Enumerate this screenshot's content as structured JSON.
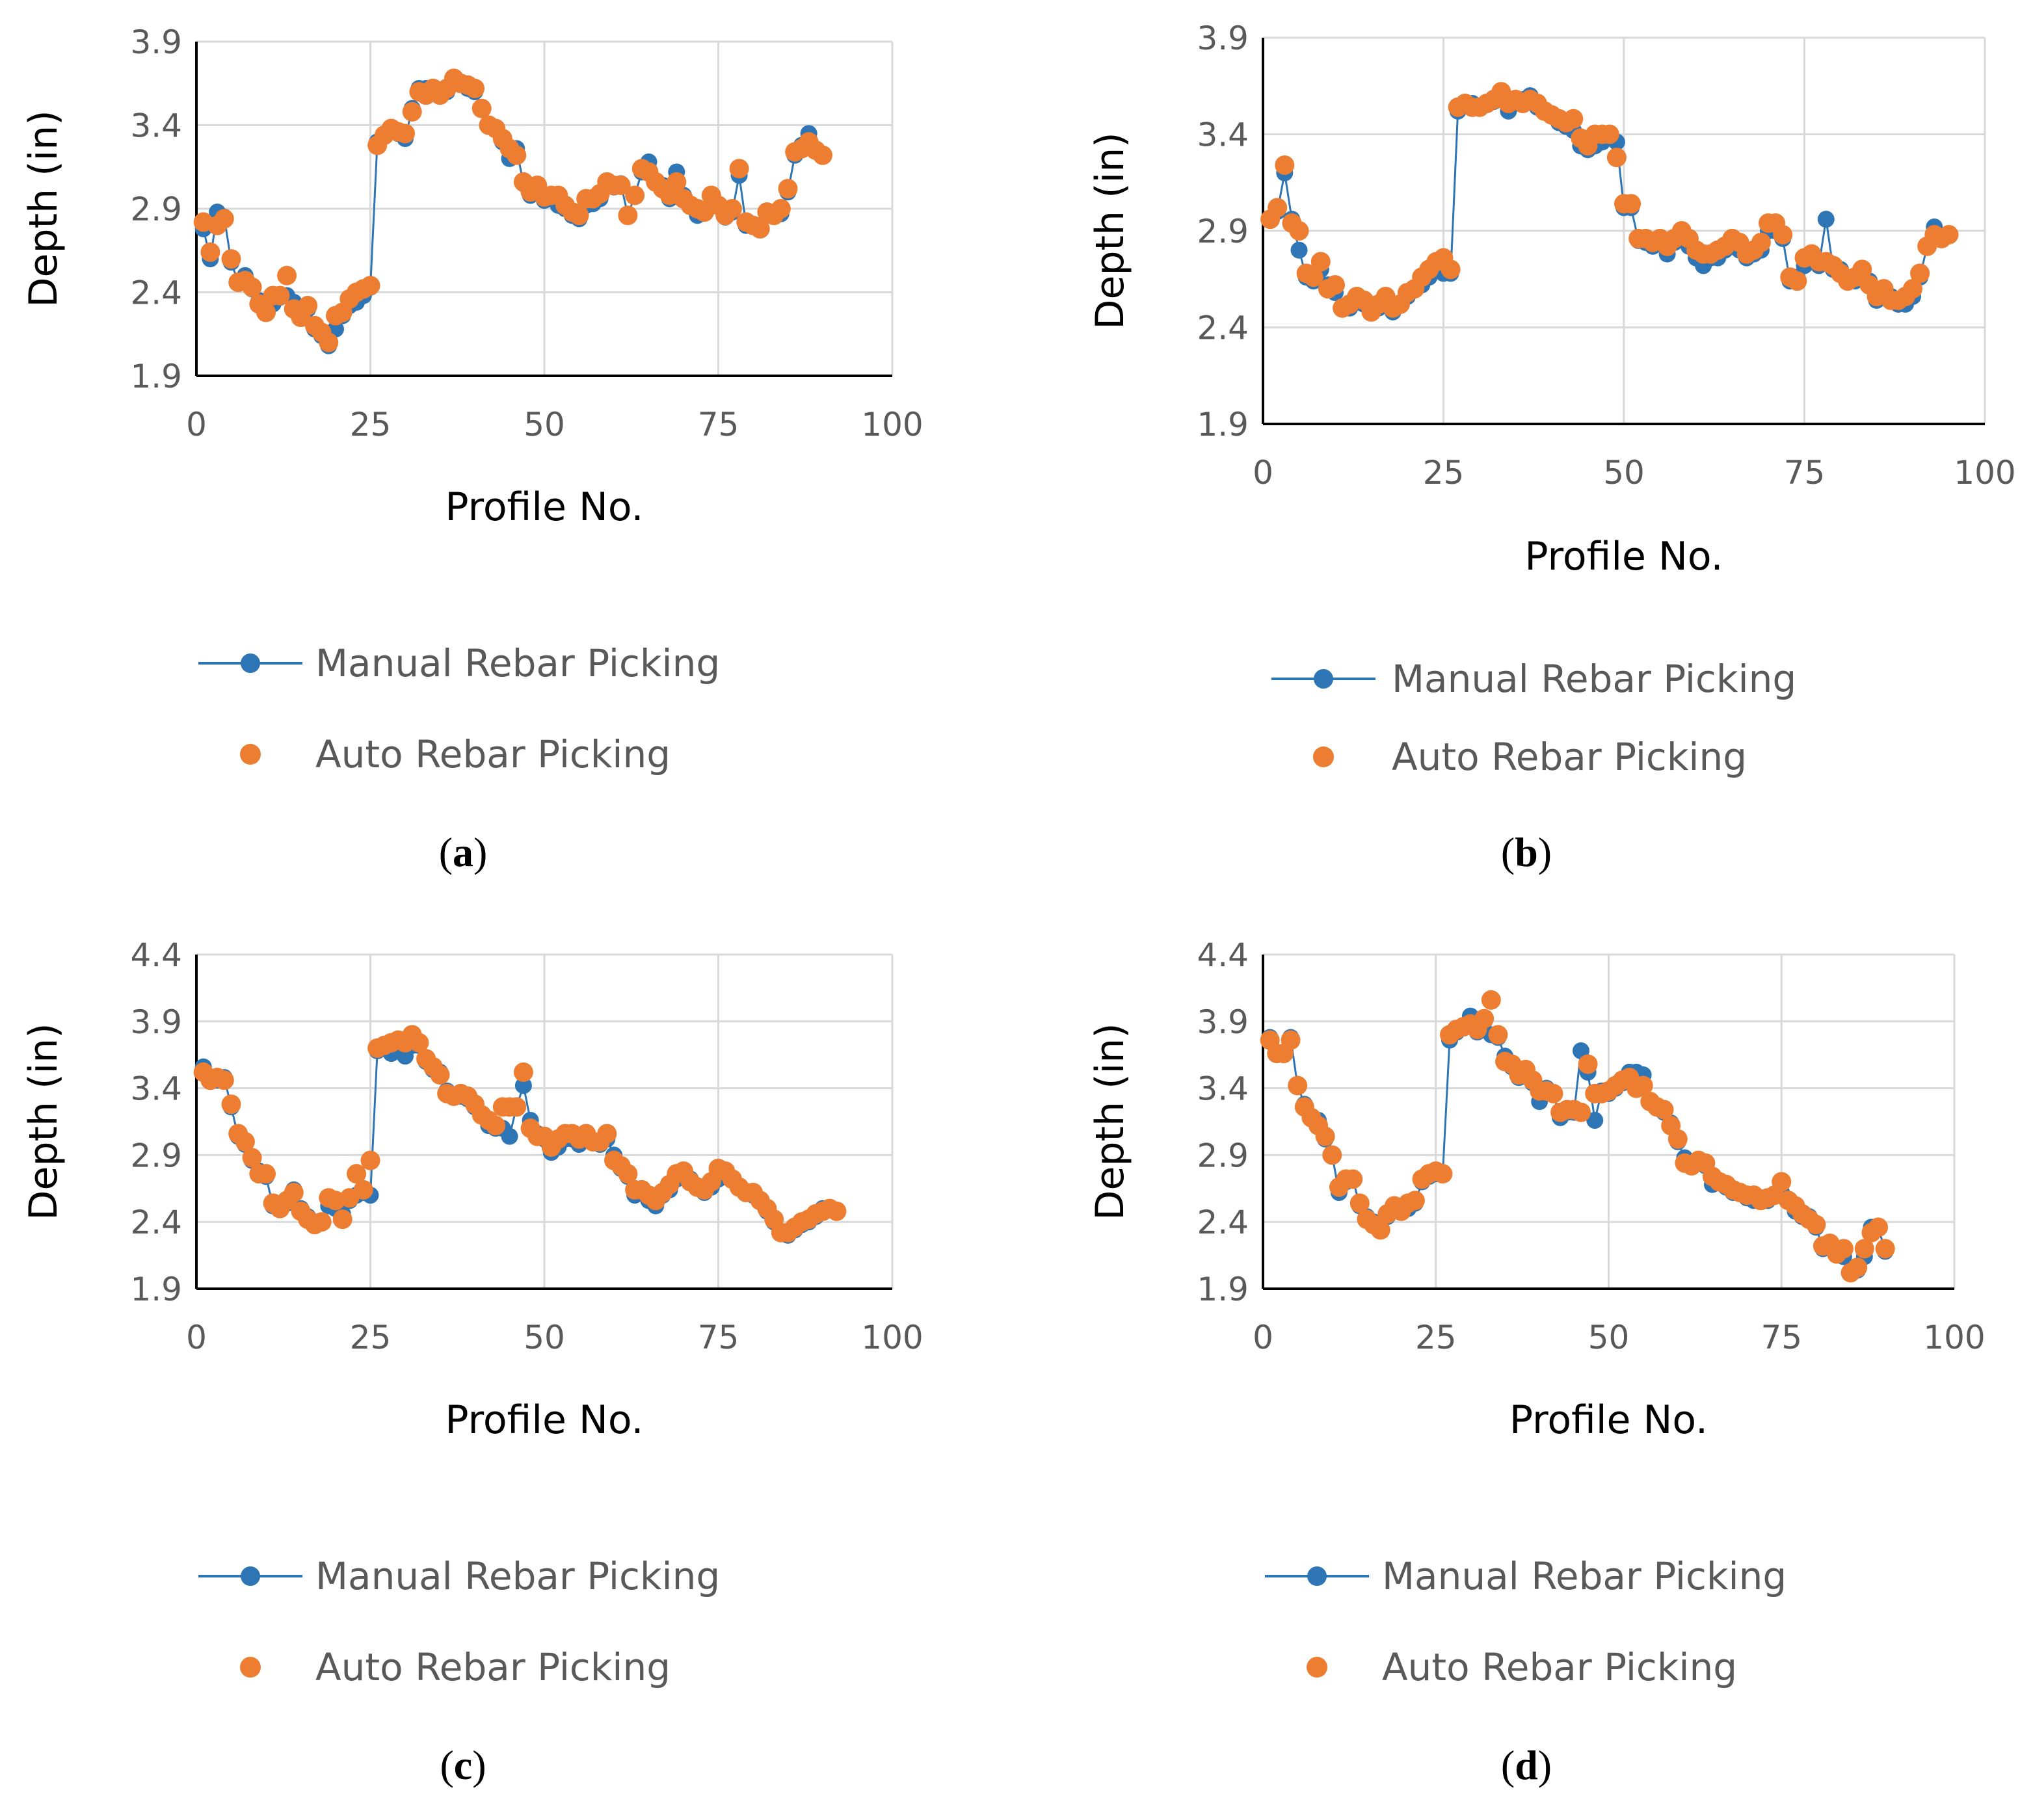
{
  "chart_data": [
    {
      "panel": "a",
      "type": "scatter",
      "xlabel": "Profile No.",
      "ylabel": "Depth (in)",
      "xlim": [
        0,
        100
      ],
      "ylim": [
        1.9,
        3.9
      ],
      "xticks": [
        0,
        25,
        50,
        75,
        100
      ],
      "yticks": [
        1.9,
        2.4,
        2.9,
        3.4,
        3.9
      ],
      "grid": true,
      "legend": "below",
      "series": [
        {
          "name": "Manual Rebar Picking",
          "color": "#2e75b6",
          "style": "line+markers",
          "x_start": 1,
          "values": [
            2.78,
            2.6,
            2.88,
            2.85,
            2.58,
            2.46,
            2.5,
            2.42,
            2.35,
            2.3,
            2.33,
            2.37,
            2.38,
            2.34,
            2.25,
            2.3,
            2.18,
            2.14,
            2.08,
            2.18,
            2.26,
            2.32,
            2.34,
            2.38,
            2.43,
            3.3,
            3.34,
            3.38,
            3.35,
            3.32,
            3.5,
            3.62,
            3.62,
            3.6,
            3.58,
            3.6,
            3.66,
            3.65,
            3.62,
            3.6,
            3.5,
            3.4,
            3.38,
            3.3,
            3.2,
            3.26,
            3.05,
            2.98,
            3.03,
            2.95,
            2.96,
            2.92,
            2.9,
            2.86,
            2.84,
            2.92,
            2.93,
            2.96,
            3.05,
            3.03,
            3.05,
            2.86,
            2.98,
            3.12,
            3.18,
            3.06,
            3.04,
            2.96,
            3.12,
            2.98,
            2.92,
            2.86,
            2.88,
            2.98,
            2.92,
            2.85,
            2.88,
            3.1,
            2.8,
            2.8,
            2.78,
            2.86,
            2.86,
            2.87,
            3.0,
            3.22,
            3.28,
            3.35,
            3.25,
            3.22
          ]
        },
        {
          "name": "Auto Rebar Picking",
          "color": "#ed7d31",
          "style": "markers",
          "x_start": 1,
          "values": [
            2.82,
            2.64,
            2.8,
            2.84,
            2.6,
            2.46,
            2.47,
            2.43,
            2.33,
            2.28,
            2.38,
            2.38,
            2.5,
            2.3,
            2.25,
            2.32,
            2.2,
            2.16,
            2.1,
            2.26,
            2.28,
            2.36,
            2.4,
            2.42,
            2.44,
            3.28,
            3.34,
            3.38,
            3.36,
            3.35,
            3.48,
            3.6,
            3.58,
            3.62,
            3.58,
            3.62,
            3.68,
            3.65,
            3.64,
            3.62,
            3.5,
            3.4,
            3.38,
            3.32,
            3.26,
            3.22,
            3.06,
            3.0,
            3.04,
            2.97,
            2.98,
            2.98,
            2.92,
            2.88,
            2.86,
            2.96,
            2.96,
            2.99,
            3.06,
            3.04,
            3.04,
            2.86,
            2.98,
            3.14,
            3.12,
            3.06,
            3.02,
            2.98,
            3.06,
            2.96,
            2.92,
            2.9,
            2.88,
            2.98,
            2.92,
            2.86,
            2.9,
            3.14,
            2.82,
            2.8,
            2.78,
            2.88,
            2.86,
            2.9,
            3.02,
            3.24,
            3.26,
            3.3,
            3.25,
            3.22
          ]
        }
      ]
    },
    {
      "panel": "b",
      "type": "scatter",
      "xlabel": "Profile No.",
      "ylabel": "Depth (in)",
      "xlim": [
        0,
        100
      ],
      "ylim": [
        1.9,
        3.9
      ],
      "xticks": [
        0,
        25,
        50,
        75,
        100
      ],
      "yticks": [
        1.9,
        2.4,
        2.9,
        3.4,
        3.9
      ],
      "grid": true,
      "legend": "below",
      "series": [
        {
          "name": "Manual Rebar Picking",
          "color": "#2e75b6",
          "style": "line+markers",
          "x_start": 1,
          "values": [
            2.96,
            3.0,
            3.2,
            2.96,
            2.8,
            2.66,
            2.64,
            2.7,
            2.62,
            2.58,
            2.5,
            2.5,
            2.53,
            2.52,
            2.48,
            2.5,
            2.53,
            2.48,
            2.52,
            2.56,
            2.6,
            2.62,
            2.66,
            2.7,
            2.68,
            2.68,
            3.52,
            3.55,
            3.56,
            3.54,
            3.56,
            3.57,
            3.6,
            3.52,
            3.56,
            3.58,
            3.6,
            3.54,
            3.52,
            3.5,
            3.46,
            3.44,
            3.42,
            3.34,
            3.32,
            3.34,
            3.36,
            3.4,
            3.36,
            3.02,
            3.02,
            2.85,
            2.84,
            2.82,
            2.84,
            2.78,
            2.84,
            2.86,
            2.82,
            2.76,
            2.72,
            2.76,
            2.76,
            2.8,
            2.84,
            2.8,
            2.76,
            2.78,
            2.8,
            2.9,
            2.9,
            2.86,
            2.64,
            2.66,
            2.72,
            2.76,
            2.72,
            2.96,
            2.7,
            2.7,
            2.64,
            2.64,
            2.68,
            2.64,
            2.54,
            2.56,
            2.56,
            2.52,
            2.52,
            2.56,
            2.66,
            2.82,
            2.92,
            2.86,
            2.88
          ]
        },
        {
          "name": "Auto Rebar Picking",
          "color": "#ed7d31",
          "style": "markers",
          "x_start": 1,
          "values": [
            2.96,
            3.02,
            3.24,
            2.94,
            2.9,
            2.68,
            2.66,
            2.74,
            2.6,
            2.62,
            2.5,
            2.52,
            2.56,
            2.54,
            2.48,
            2.52,
            2.56,
            2.5,
            2.52,
            2.58,
            2.6,
            2.66,
            2.7,
            2.74,
            2.76,
            2.7,
            3.54,
            3.56,
            3.54,
            3.54,
            3.56,
            3.58,
            3.62,
            3.56,
            3.58,
            3.56,
            3.58,
            3.56,
            3.52,
            3.5,
            3.48,
            3.46,
            3.48,
            3.38,
            3.34,
            3.4,
            3.4,
            3.4,
            3.28,
            3.04,
            3.04,
            2.86,
            2.86,
            2.84,
            2.86,
            2.82,
            2.86,
            2.9,
            2.86,
            2.8,
            2.78,
            2.78,
            2.8,
            2.82,
            2.86,
            2.84,
            2.78,
            2.8,
            2.84,
            2.94,
            2.94,
            2.88,
            2.66,
            2.64,
            2.76,
            2.78,
            2.74,
            2.74,
            2.72,
            2.68,
            2.64,
            2.66,
            2.7,
            2.62,
            2.56,
            2.6,
            2.54,
            2.54,
            2.56,
            2.6,
            2.68,
            2.82,
            2.88,
            2.86,
            2.88
          ]
        }
      ]
    },
    {
      "panel": "c",
      "type": "scatter",
      "xlabel": "Profile No.",
      "ylabel": "Depth (in)",
      "xlim": [
        0,
        100
      ],
      "ylim": [
        1.9,
        4.4
      ],
      "xticks": [
        0,
        25,
        50,
        75,
        100
      ],
      "yticks": [
        1.9,
        2.4,
        2.9,
        3.4,
        3.9,
        4.4
      ],
      "grid": true,
      "legend": "below",
      "series": [
        {
          "name": "Manual Rebar Picking",
          "color": "#2e75b6",
          "style": "line+markers",
          "x_start": 1,
          "values": [
            3.56,
            3.46,
            3.46,
            3.48,
            3.26,
            3.04,
            2.98,
            2.86,
            2.78,
            2.74,
            2.52,
            2.5,
            2.54,
            2.64,
            2.5,
            2.44,
            2.4,
            2.4,
            2.52,
            2.5,
            2.46,
            2.56,
            2.6,
            2.62,
            2.6,
            3.68,
            3.7,
            3.66,
            3.7,
            3.64,
            3.72,
            3.72,
            3.6,
            3.54,
            3.52,
            3.38,
            3.34,
            3.34,
            3.32,
            3.26,
            3.2,
            3.12,
            3.1,
            3.1,
            3.04,
            3.26,
            3.42,
            3.16,
            3.06,
            3.02,
            2.92,
            2.96,
            3.02,
            3.02,
            2.98,
            3.02,
            3.0,
            2.98,
            3.02,
            2.9,
            2.8,
            2.74,
            2.6,
            2.62,
            2.56,
            2.52,
            2.6,
            2.64,
            2.72,
            2.76,
            2.72,
            2.66,
            2.62,
            2.66,
            2.72,
            2.78,
            2.72,
            2.66,
            2.62,
            2.6,
            2.56,
            2.48,
            2.4,
            2.32,
            2.3,
            2.34,
            2.38,
            2.4,
            2.44,
            2.5,
            2.5,
            2.48
          ]
        },
        {
          "name": "Auto Rebar Picking",
          "color": "#ed7d31",
          "style": "markers",
          "x_start": 1,
          "values": [
            3.52,
            3.46,
            3.48,
            3.46,
            3.28,
            3.06,
            3.0,
            2.88,
            2.76,
            2.76,
            2.54,
            2.5,
            2.56,
            2.62,
            2.48,
            2.42,
            2.38,
            2.4,
            2.58,
            2.56,
            2.42,
            2.58,
            2.76,
            2.64,
            2.86,
            3.7,
            3.72,
            3.74,
            3.76,
            3.74,
            3.8,
            3.74,
            3.62,
            3.56,
            3.5,
            3.36,
            3.34,
            3.36,
            3.34,
            3.28,
            3.2,
            3.16,
            3.12,
            3.26,
            3.26,
            3.26,
            3.52,
            3.1,
            3.04,
            3.04,
            2.96,
            3.02,
            3.06,
            3.06,
            3.02,
            3.06,
            3.0,
            3.0,
            3.06,
            2.86,
            2.82,
            2.76,
            2.64,
            2.64,
            2.6,
            2.56,
            2.62,
            2.68,
            2.76,
            2.78,
            2.7,
            2.66,
            2.64,
            2.7,
            2.8,
            2.78,
            2.72,
            2.66,
            2.62,
            2.62,
            2.56,
            2.5,
            2.42,
            2.32,
            2.32,
            2.36,
            2.4,
            2.42,
            2.46,
            2.48,
            2.5,
            2.48
          ]
        }
      ]
    },
    {
      "panel": "d",
      "type": "scatter",
      "xlabel": "Profile No.",
      "ylabel": "Depth (in)",
      "xlim": [
        0,
        100
      ],
      "ylim": [
        1.9,
        4.4
      ],
      "xticks": [
        0,
        25,
        50,
        75,
        100
      ],
      "yticks": [
        1.9,
        2.4,
        2.9,
        3.4,
        3.9,
        4.4
      ],
      "grid": true,
      "legend": "below",
      "series": [
        {
          "name": "Manual Rebar Picking",
          "color": "#2e75b6",
          "style": "line+markers",
          "x_start": 1,
          "values": [
            3.78,
            3.66,
            3.66,
            3.78,
            3.42,
            3.28,
            3.18,
            3.16,
            3.02,
            2.9,
            2.62,
            2.7,
            2.72,
            2.52,
            2.44,
            2.4,
            2.34,
            2.44,
            2.5,
            2.48,
            2.5,
            2.54,
            2.7,
            2.74,
            2.76,
            2.76,
            3.76,
            3.82,
            3.86,
            3.94,
            3.82,
            3.9,
            3.8,
            3.78,
            3.64,
            3.56,
            3.48,
            3.52,
            3.44,
            3.3,
            3.4,
            3.36,
            3.18,
            3.22,
            3.22,
            3.68,
            3.52,
            3.16,
            3.38,
            3.36,
            3.4,
            3.44,
            3.52,
            3.52,
            3.5,
            3.3,
            3.26,
            3.22,
            3.14,
            3.0,
            2.88,
            2.82,
            2.84,
            2.82,
            2.68,
            2.7,
            2.66,
            2.62,
            2.62,
            2.58,
            2.56,
            2.58,
            2.56,
            2.6,
            2.62,
            2.56,
            2.48,
            2.44,
            2.44,
            2.36,
            2.2,
            2.24,
            2.18,
            2.14,
            2.02,
            2.04,
            2.14,
            2.36,
            2.36,
            2.18
          ]
        },
        {
          "name": "Auto Rebar Picking",
          "color": "#ed7d31",
          "style": "markers",
          "x_start": 1,
          "values": [
            3.76,
            3.66,
            3.66,
            3.76,
            3.42,
            3.26,
            3.18,
            3.12,
            3.04,
            2.9,
            2.66,
            2.72,
            2.72,
            2.54,
            2.42,
            2.38,
            2.34,
            2.46,
            2.52,
            2.48,
            2.54,
            2.56,
            2.72,
            2.76,
            2.78,
            2.76,
            3.8,
            3.84,
            3.86,
            3.88,
            3.84,
            3.92,
            4.06,
            3.8,
            3.6,
            3.58,
            3.5,
            3.54,
            3.46,
            3.38,
            3.38,
            3.36,
            3.22,
            3.24,
            3.24,
            3.22,
            3.58,
            3.36,
            3.36,
            3.38,
            3.42,
            3.46,
            3.48,
            3.4,
            3.42,
            3.3,
            3.26,
            3.24,
            3.12,
            3.02,
            2.84,
            2.82,
            2.86,
            2.84,
            2.74,
            2.7,
            2.68,
            2.64,
            2.62,
            2.6,
            2.6,
            2.56,
            2.58,
            2.6,
            2.7,
            2.56,
            2.52,
            2.46,
            2.42,
            2.38,
            2.22,
            2.24,
            2.16,
            2.2,
            2.02,
            2.06,
            2.2,
            2.32,
            2.36,
            2.2
          ]
        }
      ]
    }
  ],
  "panels": [
    {
      "letter": "a"
    },
    {
      "letter": "b"
    },
    {
      "letter": "c"
    },
    {
      "letter": "d"
    }
  ]
}
